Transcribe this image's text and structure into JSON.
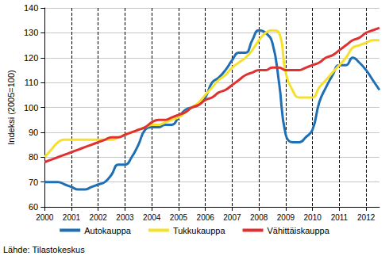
{
  "chart_data": {
    "type": "line",
    "y_label": "Indeksi (2005=100)",
    "source": "Lähde: Tilastokeskus",
    "x": [
      2000,
      2000.25,
      2000.5,
      2000.75,
      2001,
      2001.25,
      2001.5,
      2001.75,
      2002,
      2002.25,
      2002.5,
      2002.75,
      2003,
      2003.25,
      2003.5,
      2003.75,
      2004,
      2004.25,
      2004.5,
      2004.75,
      2005,
      2005.25,
      2005.5,
      2005.75,
      2006,
      2006.25,
      2006.5,
      2006.75,
      2007,
      2007.25,
      2007.5,
      2007.75,
      2008,
      2008.25,
      2008.5,
      2008.75,
      2009,
      2009.25,
      2009.5,
      2009.75,
      2010,
      2010.25,
      2010.5,
      2010.75,
      2011,
      2011.25,
      2011.5,
      2011.75,
      2012,
      2012.25,
      2012.5
    ],
    "series": [
      {
        "name": "Autokauppa",
        "color": "#1f6fb4",
        "values": [
          70,
          70,
          70,
          69,
          68,
          67,
          67,
          68,
          69,
          70,
          73,
          77,
          77,
          80,
          85,
          91,
          92,
          92,
          93,
          93,
          96,
          99,
          100,
          101,
          104,
          110,
          112,
          115,
          119,
          122,
          122,
          127,
          131,
          130,
          126,
          110,
          89,
          86,
          86,
          88,
          91,
          102,
          108,
          113,
          117,
          117,
          120,
          118,
          115,
          111,
          107
        ]
      },
      {
        "name": "Tukkukauppa",
        "color": "#f5e02b",
        "values": [
          80,
          83,
          86,
          87,
          87,
          87,
          87,
          87,
          87,
          87,
          87,
          88,
          89,
          90,
          91,
          92,
          93,
          93,
          94,
          95,
          96,
          98,
          100,
          102,
          105,
          108,
          111,
          113,
          116,
          118,
          120,
          123,
          127,
          130,
          131,
          130,
          114,
          107,
          104,
          104,
          104,
          108,
          111,
          114,
          117,
          120,
          124,
          125,
          126,
          127,
          127
        ]
      },
      {
        "name": "Vähittäiskauppa",
        "color": "#e03030",
        "values": [
          78,
          79,
          80,
          81,
          82,
          83,
          84,
          85,
          86,
          87,
          88,
          88,
          89,
          90,
          91,
          92,
          94,
          95,
          95,
          96,
          97,
          98,
          100,
          101,
          103,
          104,
          106,
          107,
          109,
          111,
          113,
          114,
          115,
          115,
          116,
          116,
          115,
          115,
          115,
          116,
          117,
          118,
          120,
          121,
          123,
          125,
          127,
          128,
          130,
          131,
          132
        ]
      }
    ],
    "xlim": [
      2000,
      2012.5
    ],
    "xticks": [
      2000,
      2001,
      2002,
      2003,
      2004,
      2005,
      2006,
      2007,
      2008,
      2009,
      2010,
      2011,
      2012
    ],
    "ylim": [
      60,
      140
    ],
    "yticks": [
      60,
      70,
      80,
      90,
      100,
      110,
      120,
      130,
      140
    ],
    "grid": true,
    "legend": "bottom"
  }
}
